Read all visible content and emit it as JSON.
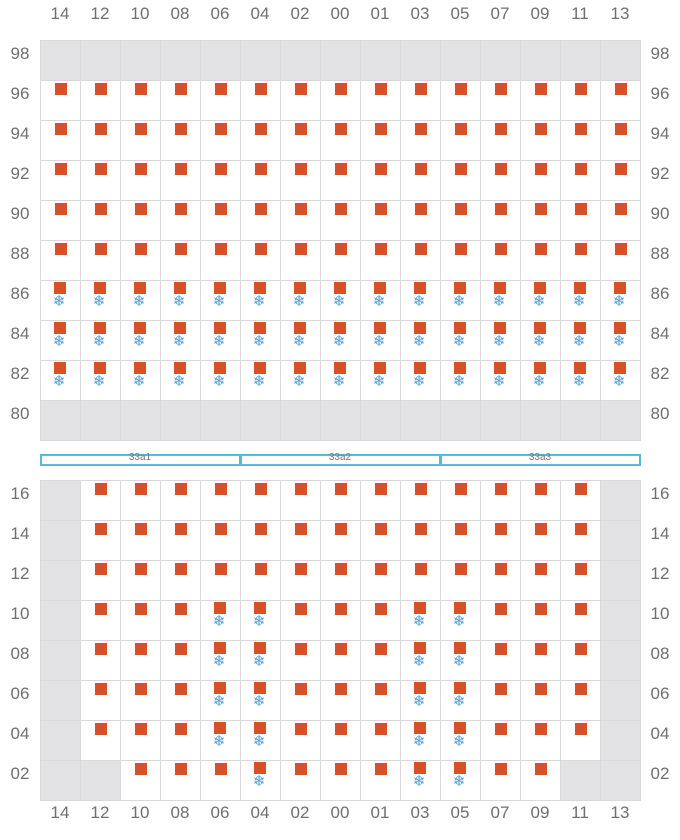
{
  "colors": {
    "container": "#d8502a",
    "reefer": "#4a9ee6",
    "blocked": "#e3e3e6",
    "grid": "#d9d9d9",
    "hatch": "#58b8dd"
  },
  "icons": {
    "container": "square-icon",
    "reefer": "snowflake-icon"
  },
  "reefer_symbol": "❄",
  "columns": [
    "14",
    "12",
    "10",
    "08",
    "06",
    "04",
    "02",
    "00",
    "01",
    "03",
    "05",
    "07",
    "09",
    "11",
    "13"
  ],
  "deck": {
    "tiers": [
      "98",
      "96",
      "94",
      "92",
      "90",
      "88",
      "86",
      "84",
      "82",
      "80"
    ],
    "blocked_tiers": [
      "98",
      "80"
    ],
    "container_tiers": [
      "96",
      "94",
      "92",
      "90",
      "88",
      "86",
      "84",
      "82"
    ],
    "reefer_tiers": [
      "86",
      "84",
      "82"
    ]
  },
  "hatch_covers": [
    "33a1",
    "33a2",
    "33a3"
  ],
  "hold": {
    "tiers": [
      "16",
      "14",
      "12",
      "10",
      "08",
      "06",
      "04",
      "02"
    ],
    "rows": [
      {
        "tier": "16",
        "blocked": [
          "14",
          "13"
        ],
        "containers": [
          "12",
          "10",
          "08",
          "06",
          "04",
          "02",
          "00",
          "01",
          "03",
          "05",
          "07",
          "09",
          "11"
        ],
        "reefers": []
      },
      {
        "tier": "14",
        "blocked": [
          "14",
          "13"
        ],
        "containers": [
          "12",
          "10",
          "08",
          "06",
          "04",
          "02",
          "00",
          "01",
          "03",
          "05",
          "07",
          "09",
          "11"
        ],
        "reefers": []
      },
      {
        "tier": "12",
        "blocked": [
          "14",
          "13"
        ],
        "containers": [
          "12",
          "10",
          "08",
          "06",
          "04",
          "02",
          "00",
          "01",
          "03",
          "05",
          "07",
          "09",
          "11"
        ],
        "reefers": []
      },
      {
        "tier": "10",
        "blocked": [
          "14",
          "13"
        ],
        "containers": [
          "12",
          "10",
          "08",
          "06",
          "04",
          "02",
          "00",
          "01",
          "03",
          "05",
          "07",
          "09",
          "11"
        ],
        "reefers": [
          "06",
          "04",
          "03",
          "05"
        ]
      },
      {
        "tier": "08",
        "blocked": [
          "14",
          "13"
        ],
        "containers": [
          "12",
          "10",
          "08",
          "06",
          "04",
          "02",
          "00",
          "01",
          "03",
          "05",
          "07",
          "09",
          "11"
        ],
        "reefers": [
          "06",
          "04",
          "03",
          "05"
        ]
      },
      {
        "tier": "06",
        "blocked": [
          "14",
          "13"
        ],
        "containers": [
          "12",
          "10",
          "08",
          "06",
          "04",
          "02",
          "00",
          "01",
          "03",
          "05",
          "07",
          "09",
          "11"
        ],
        "reefers": [
          "06",
          "04",
          "03",
          "05"
        ]
      },
      {
        "tier": "04",
        "blocked": [
          "14",
          "13"
        ],
        "containers": [
          "12",
          "10",
          "08",
          "06",
          "04",
          "02",
          "00",
          "01",
          "03",
          "05",
          "07",
          "09",
          "11"
        ],
        "reefers": [
          "06",
          "04",
          "03",
          "05"
        ]
      },
      {
        "tier": "02",
        "blocked": [
          "14",
          "12",
          "11",
          "13"
        ],
        "containers": [
          "10",
          "08",
          "06",
          "04",
          "02",
          "00",
          "01",
          "03",
          "05",
          "07",
          "09"
        ],
        "reefers": [
          "04",
          "03",
          "05"
        ]
      }
    ]
  }
}
